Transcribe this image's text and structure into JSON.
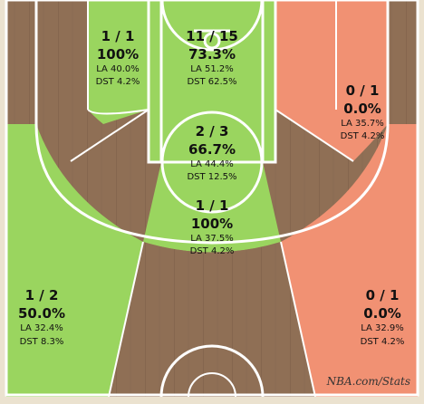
{
  "chart_data": {
    "type": "heatmap",
    "title": "",
    "zones": [
      {
        "key": "left_wing_mid",
        "made": 1,
        "attempted": 1,
        "fraction": "1 / 1",
        "pct": "100%",
        "la": "LA 40.0%",
        "dst": "DST 4.2%",
        "color": "#9ad55f"
      },
      {
        "key": "restricted_paint",
        "made": 11,
        "attempted": 15,
        "fraction": "11 / 15",
        "pct": "73.3%",
        "la": "LA 51.2%",
        "dst": "DST 62.5%",
        "color": "#9ad55f"
      },
      {
        "key": "right_wing_mid",
        "made": 0,
        "attempted": 1,
        "fraction": "0 / 1",
        "pct": "0.0%",
        "la": "LA 35.7%",
        "dst": "DST 4.2%",
        "color": "#f19173"
      },
      {
        "key": "ft_line",
        "made": 2,
        "attempted": 3,
        "fraction": "2 / 3",
        "pct": "66.7%",
        "la": "LA 44.4%",
        "dst": "DST 12.5%",
        "color": "#9ad55f"
      },
      {
        "key": "top_key_mid",
        "made": 1,
        "attempted": 1,
        "fraction": "1 / 1",
        "pct": "100%",
        "la": "LA 37.5%",
        "dst": "DST 4.2%",
        "color": "#9ad55f"
      },
      {
        "key": "left_wing_three",
        "made": 1,
        "attempted": 2,
        "fraction": "1 / 2",
        "pct": "50.0%",
        "la": "LA 32.4%",
        "dst": "DST 8.3%",
        "color": "#9ad55f"
      },
      {
        "key": "right_wing_three",
        "made": 0,
        "attempted": 1,
        "fraction": "0 / 1",
        "pct": "0.0%",
        "la": "LA 32.9%",
        "dst": "DST 4.2%",
        "color": "#f19173"
      }
    ]
  },
  "branding": "NBA.com/Stats",
  "colors": {
    "above_avg": "#9ad55f",
    "below_avg": "#f19173",
    "wood": "#8f6f55",
    "lines": "#ffffff"
  }
}
